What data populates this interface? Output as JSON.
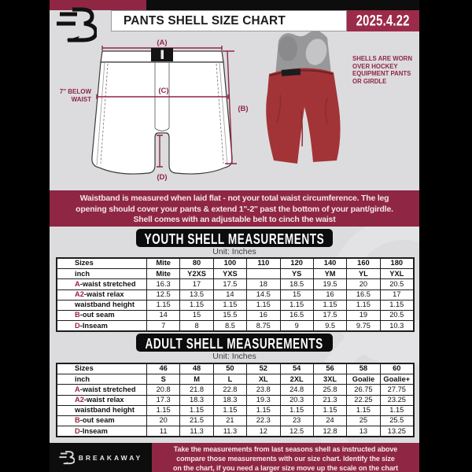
{
  "header": {
    "title": "PANTS SHELL SIZE CHART",
    "date": "2025.4.22",
    "logo": "breakaway-b-logo"
  },
  "diagram": {
    "label_a": "(A)",
    "label_b": "(B)",
    "label_c": "(C)",
    "label_d": "(D)",
    "below_waist_lines": [
      "7'' BELOW",
      "WAIST"
    ],
    "photo_note_lines": [
      "SHELLS ARE WORN",
      "OVER HOCKEY",
      "EQUIPMENT PANTS",
      "OR GIRDLE"
    ]
  },
  "notice": {
    "lines": [
      "Waistband is measured when laid flat - not your total waist circumference. The leg",
      "opening should cover your pants & extend 1''-2'' past the bottom of your pant/girdle.",
      "Shell comes with an adjustable belt to cinch the waist"
    ]
  },
  "youth": {
    "heading": "YOUTH SHELL MEASUREMENTS",
    "unit": "Unit: Inches",
    "rows": [
      {
        "prefix": "",
        "label": "Sizes",
        "header": true,
        "values": [
          "Mite",
          "80",
          "100",
          "110",
          "120",
          "140",
          "160",
          "180"
        ]
      },
      {
        "prefix": "",
        "label": "inch",
        "header": true,
        "values": [
          "Mite",
          "Y2XS",
          "YXS",
          "",
          "YS",
          "YM",
          "YL",
          "YXL"
        ]
      },
      {
        "prefix": "A",
        "label": "-waist stretched",
        "values": [
          "16.3",
          "17",
          "17.5",
          "18",
          "18.5",
          "19.5",
          "20",
          "20.5"
        ]
      },
      {
        "prefix": "A2",
        "label": "-waist relax",
        "values": [
          "12.5",
          "13.5",
          "14",
          "14.5",
          "15",
          "16",
          "16.5",
          "17"
        ]
      },
      {
        "prefix": "",
        "label": "waistband height",
        "values": [
          "1.15",
          "1.15",
          "1.15",
          "1.15",
          "1.15",
          "1.15",
          "1.15",
          "1.15"
        ]
      },
      {
        "prefix": "B",
        "label": "-out seam",
        "values": [
          "14",
          "15",
          "15.5",
          "16",
          "16.5",
          "17.5",
          "19",
          "20.5"
        ]
      },
      {
        "prefix": "D",
        "label": "-Inseam",
        "values": [
          "7",
          "8",
          "8.5",
          "8.75",
          "9",
          "9.5",
          "9.75",
          "10.3"
        ]
      }
    ]
  },
  "adult": {
    "heading": "ADULT SHELL MEASUREMENTS",
    "unit": "Unit: Inches",
    "rows": [
      {
        "prefix": "",
        "label": "Sizes",
        "header": true,
        "values": [
          "46",
          "48",
          "50",
          "52",
          "54",
          "56",
          "58",
          "60"
        ]
      },
      {
        "prefix": "",
        "label": "inch",
        "header": true,
        "values": [
          "S",
          "M",
          "L",
          "XL",
          "2XL",
          "3XL",
          "Goalie",
          "Goalie+"
        ]
      },
      {
        "prefix": "A",
        "label": "-waist stretched",
        "values": [
          "20.8",
          "21.8",
          "22.8",
          "23.8",
          "24.8",
          "25.8",
          "26.75",
          "27.75"
        ]
      },
      {
        "prefix": "A2",
        "label": "-waist relax",
        "values": [
          "17.3",
          "18.3",
          "18.3",
          "19.3",
          "20.3",
          "21.3",
          "22.25",
          "23.25"
        ]
      },
      {
        "prefix": "",
        "label": "waistband height",
        "values": [
          "1.15",
          "1.15",
          "1.15",
          "1.15",
          "1.15",
          "1.15",
          "1.15",
          "1.15"
        ]
      },
      {
        "prefix": "B",
        "label": "-out seam",
        "values": [
          "20",
          "21.5",
          "21",
          "22.3",
          "23",
          "24",
          "25",
          "25.5"
        ]
      },
      {
        "prefix": "D",
        "label": "-Inseam",
        "values": [
          "11",
          "11.3",
          "11.3",
          "12",
          "12.5",
          "12.8",
          "13",
          "13.25"
        ]
      }
    ]
  },
  "footer": {
    "brand": "BREAKAWAY",
    "note_lines": [
      "Take the measurements from last seasons shell as instructed above",
      "compare those measurements  with our size chart. Identify the size",
      "on the chart, if you need a larger size move up the scale on the chart"
    ]
  },
  "colors": {
    "maroon": "#8F2744",
    "date_box_red": "#9C2B49",
    "shell_red": "#A23438",
    "page_gray": "#DCDCDE",
    "banner_black": "#0C0C0C",
    "label_red": "#9C2240"
  }
}
